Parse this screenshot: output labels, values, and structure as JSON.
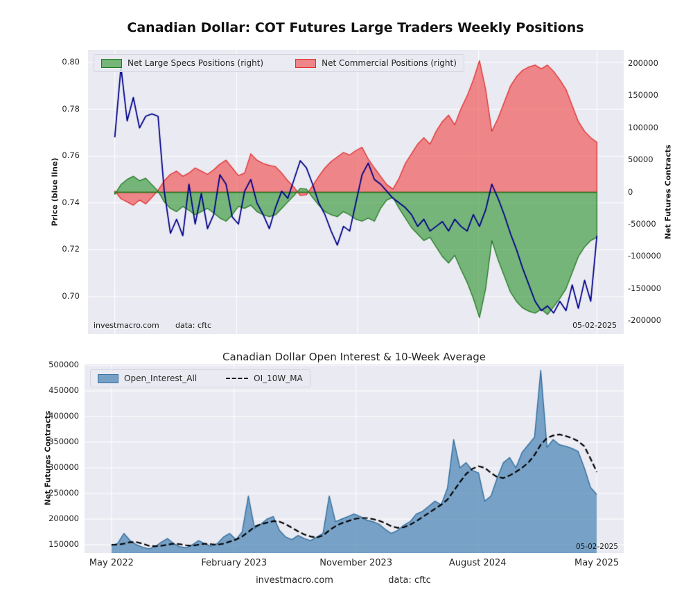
{
  "colors": {
    "figure_bg": "#ffffff",
    "plot_bg": "#eaeaf2",
    "grid": "#ffffff"
  },
  "chart_data": [
    {
      "type": "area+line",
      "title": "Canadian Dollar: COT Futures Large Traders Weekly Positions",
      "x_unit": "weeks since May 2022",
      "x_weeks": [
        0,
        2,
        4,
        6,
        8,
        10,
        12,
        14,
        16,
        18,
        20,
        22,
        24,
        26,
        28,
        30,
        32,
        34,
        36,
        38,
        40,
        42,
        44,
        46,
        48,
        50,
        52,
        54,
        56,
        58,
        60,
        62,
        64,
        66,
        68,
        70,
        72,
        74,
        76,
        78,
        80,
        82,
        84,
        86,
        88,
        90,
        92,
        94,
        96,
        98,
        100,
        102,
        104,
        106,
        108,
        110,
        112,
        114,
        116,
        118,
        120,
        122,
        124,
        126,
        128,
        130,
        132,
        134,
        136,
        138,
        140,
        142,
        144,
        146,
        148,
        150,
        152,
        154,
        156
      ],
      "series": [
        {
          "name": "Price (blue line)",
          "axis": "left",
          "type": "line",
          "color": "#00008b",
          "values": [
            0.768,
            0.798,
            0.775,
            0.785,
            0.772,
            0.777,
            0.778,
            0.777,
            0.745,
            0.727,
            0.733,
            0.726,
            0.748,
            0.731,
            0.744,
            0.729,
            0.735,
            0.752,
            0.748,
            0.734,
            0.731,
            0.745,
            0.75,
            0.74,
            0.735,
            0.729,
            0.738,
            0.745,
            0.742,
            0.75,
            0.758,
            0.755,
            0.748,
            0.74,
            0.735,
            0.728,
            0.722,
            0.73,
            0.728,
            0.74,
            0.752,
            0.757,
            0.75,
            0.748,
            0.745,
            0.742,
            0.74,
            0.738,
            0.735,
            0.73,
            0.733,
            0.728,
            0.73,
            0.732,
            0.728,
            0.733,
            0.73,
            0.728,
            0.735,
            0.73,
            0.737,
            0.748,
            0.742,
            0.735,
            0.727,
            0.72,
            0.712,
            0.705,
            0.698,
            0.694,
            0.696,
            0.693,
            0.698,
            0.694,
            0.705,
            0.695,
            0.707,
            0.698,
            0.726
          ]
        },
        {
          "name": "Net Large Specs Positions (right)",
          "axis": "right",
          "type": "area",
          "fill": "rgba(40,145,40,0.6)",
          "edge": "#227a22",
          "values": [
            -3000,
            12000,
            20000,
            25000,
            18000,
            22000,
            12000,
            2000,
            -15000,
            -25000,
            -30000,
            -22000,
            -28000,
            -35000,
            -30000,
            -25000,
            -32000,
            -40000,
            -45000,
            -35000,
            -22000,
            -25000,
            -20000,
            -30000,
            -35000,
            -38000,
            -35000,
            -25000,
            -15000,
            -5000,
            6000,
            5000,
            -8000,
            -20000,
            -30000,
            -35000,
            -38000,
            -30000,
            -35000,
            -42000,
            -45000,
            -40000,
            -45000,
            -25000,
            -12000,
            -8000,
            -25000,
            -40000,
            -55000,
            -65000,
            -75000,
            -70000,
            -85000,
            -100000,
            -110000,
            -98000,
            -120000,
            -140000,
            -165000,
            -195000,
            -150000,
            -75000,
            -105000,
            -130000,
            -155000,
            -170000,
            -180000,
            -185000,
            -188000,
            -182000,
            -190000,
            -178000,
            -165000,
            -150000,
            -125000,
            -100000,
            -85000,
            -75000,
            -70000
          ]
        },
        {
          "name": "Net Commercial Positions (right)",
          "axis": "right",
          "type": "area",
          "fill": "rgba(240,50,50,0.55)",
          "edge": "#e03131",
          "values": [
            2000,
            -10000,
            -15000,
            -20000,
            -12000,
            -18000,
            -8000,
            3000,
            18000,
            28000,
            33000,
            25000,
            30000,
            38000,
            33000,
            28000,
            35000,
            44000,
            50000,
            38000,
            26000,
            30000,
            60000,
            50000,
            45000,
            42000,
            40000,
            30000,
            18000,
            8000,
            -5000,
            -4000,
            10000,
            25000,
            38000,
            48000,
            55000,
            62000,
            58000,
            65000,
            70000,
            52000,
            38000,
            25000,
            12000,
            5000,
            22000,
            45000,
            60000,
            75000,
            85000,
            75000,
            95000,
            110000,
            120000,
            105000,
            130000,
            150000,
            175000,
            205000,
            160000,
            95000,
            115000,
            140000,
            165000,
            180000,
            190000,
            195000,
            198000,
            192000,
            198000,
            188000,
            175000,
            160000,
            135000,
            110000,
            95000,
            85000,
            78000
          ]
        }
      ],
      "left_axis": {
        "label": "Price (blue line)",
        "ticks": [
          0.8,
          0.78,
          0.76,
          0.74,
          0.72,
          0.7
        ],
        "range": [
          0.684,
          0.805
        ]
      },
      "right_axis": {
        "label": "Net Futures Contracts",
        "ticks": [
          200000,
          150000,
          100000,
          50000,
          0,
          -50000,
          -100000,
          -150000,
          -200000
        ],
        "range": [
          -221000,
          221000
        ]
      },
      "x_axis": {
        "ticks": [
          {
            "week": 0,
            "label": "May 2022"
          },
          {
            "week": 39.4,
            "label": "February 2023"
          },
          {
            "week": 78.6,
            "label": "November 2023"
          },
          {
            "week": 117.7,
            "label": "August 2024"
          },
          {
            "week": 156,
            "label": "May 2025"
          }
        ]
      },
      "annotations": {
        "watermark": "investmacro.com",
        "source": "data: cftc",
        "date": "05-02-2025"
      }
    },
    {
      "type": "area+line",
      "title": "Canadian Dollar Open Interest & 10-Week Average",
      "x_unit": "weeks since May 2022",
      "x_weeks": [
        0,
        2,
        4,
        6,
        8,
        10,
        12,
        14,
        16,
        18,
        20,
        22,
        24,
        26,
        28,
        30,
        32,
        34,
        36,
        38,
        40,
        42,
        44,
        46,
        48,
        50,
        52,
        54,
        56,
        58,
        60,
        62,
        64,
        66,
        68,
        70,
        72,
        74,
        76,
        78,
        80,
        82,
        84,
        86,
        88,
        90,
        92,
        94,
        96,
        98,
        100,
        102,
        104,
        106,
        108,
        110,
        112,
        114,
        116,
        118,
        120,
        122,
        124,
        126,
        128,
        130,
        132,
        134,
        136,
        138,
        140,
        142,
        144,
        146,
        148,
        150,
        152,
        154,
        156
      ],
      "series": [
        {
          "name": "Open_Interest_All",
          "type": "area",
          "fill": "rgba(70,130,180,0.7)",
          "edge": "#336f9e",
          "values": [
            148000,
            153000,
            172000,
            158000,
            150000,
            145000,
            142000,
            146000,
            155000,
            162000,
            152000,
            146000,
            144000,
            150000,
            158000,
            152000,
            147000,
            152000,
            165000,
            172000,
            160000,
            175000,
            245000,
            182000,
            190000,
            200000,
            205000,
            178000,
            165000,
            160000,
            168000,
            162000,
            158000,
            165000,
            172000,
            245000,
            195000,
            200000,
            205000,
            210000,
            205000,
            198000,
            195000,
            190000,
            180000,
            172000,
            178000,
            188000,
            195000,
            210000,
            215000,
            225000,
            235000,
            228000,
            260000,
            355000,
            300000,
            310000,
            295000,
            290000,
            235000,
            245000,
            280000,
            310000,
            320000,
            300000,
            330000,
            345000,
            360000,
            490000,
            340000,
            355000,
            345000,
            342000,
            338000,
            332000,
            300000,
            262000,
            248000
          ]
        },
        {
          "name": "OI_10W_MA",
          "type": "dashed-line",
          "color": "#000000",
          "values": [
            150000,
            150000,
            152000,
            155000,
            155000,
            152000,
            148000,
            147000,
            148000,
            150000,
            152000,
            151000,
            149000,
            148000,
            150000,
            152000,
            151000,
            150000,
            152000,
            156000,
            160000,
            166000,
            175000,
            185000,
            190000,
            193000,
            196000,
            195000,
            190000,
            183000,
            176000,
            170000,
            166000,
            164000,
            168000,
            178000,
            186000,
            192000,
            196000,
            200000,
            202000,
            202000,
            200000,
            197000,
            192000,
            186000,
            183000,
            184000,
            189000,
            196000,
            204000,
            212000,
            220000,
            228000,
            238000,
            255000,
            272000,
            288000,
            298000,
            303000,
            300000,
            290000,
            282000,
            280000,
            285000,
            292000,
            300000,
            310000,
            325000,
            345000,
            358000,
            363000,
            365000,
            362000,
            358000,
            352000,
            342000,
            318000,
            292000
          ]
        }
      ],
      "y_axis": {
        "label": "Net Futures Contracts",
        "ticks": [
          500000,
          450000,
          400000,
          350000,
          300000,
          250000,
          200000,
          150000
        ],
        "range": [
          134000,
          502000
        ]
      },
      "x_axis": {
        "ticks": [
          {
            "week": 0,
            "label": "May 2022"
          },
          {
            "week": 39.4,
            "label": "February 2023"
          },
          {
            "week": 78.6,
            "label": "November 2023"
          },
          {
            "week": 117.7,
            "label": "August 2024"
          },
          {
            "week": 156,
            "label": "May 2025"
          }
        ]
      },
      "annotations": {
        "watermark": "investmacro.com",
        "source": "data: cftc",
        "date": "05-02-2025"
      }
    }
  ]
}
